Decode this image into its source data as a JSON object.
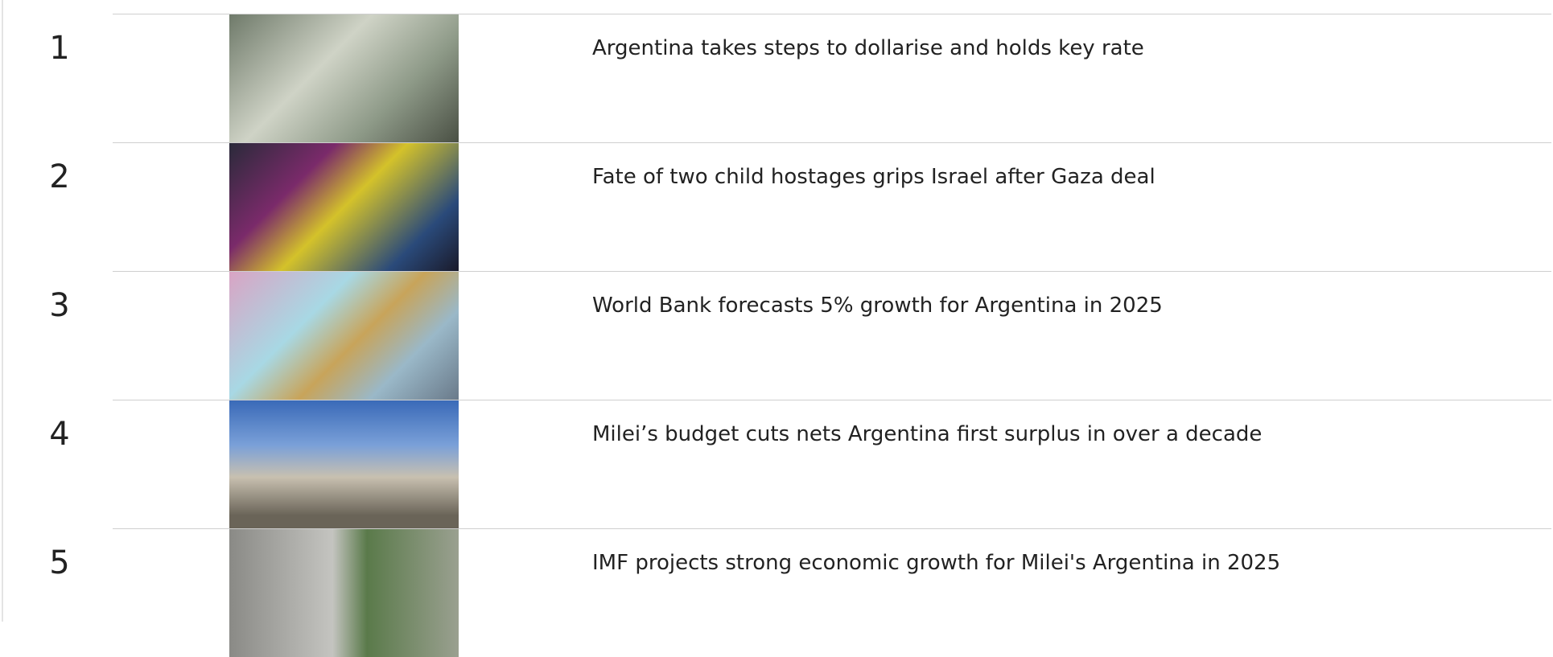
{
  "list": {
    "items": [
      {
        "rank": 1,
        "headline": "Argentina takes steps to dollarise and holds key rate"
      },
      {
        "rank": 2,
        "headline": "Fate of two child hostages grips Israel after Gaza deal"
      },
      {
        "rank": 3,
        "headline": "World Bank forecasts 5% growth for Argentina in 2025"
      },
      {
        "rank": 4,
        "headline": "Milei’s budget cuts nets Argentina first surplus in over a decade"
      },
      {
        "rank": 5,
        "headline": "IMF projects strong economic growth for Milei's Argentina in 2025"
      }
    ]
  }
}
